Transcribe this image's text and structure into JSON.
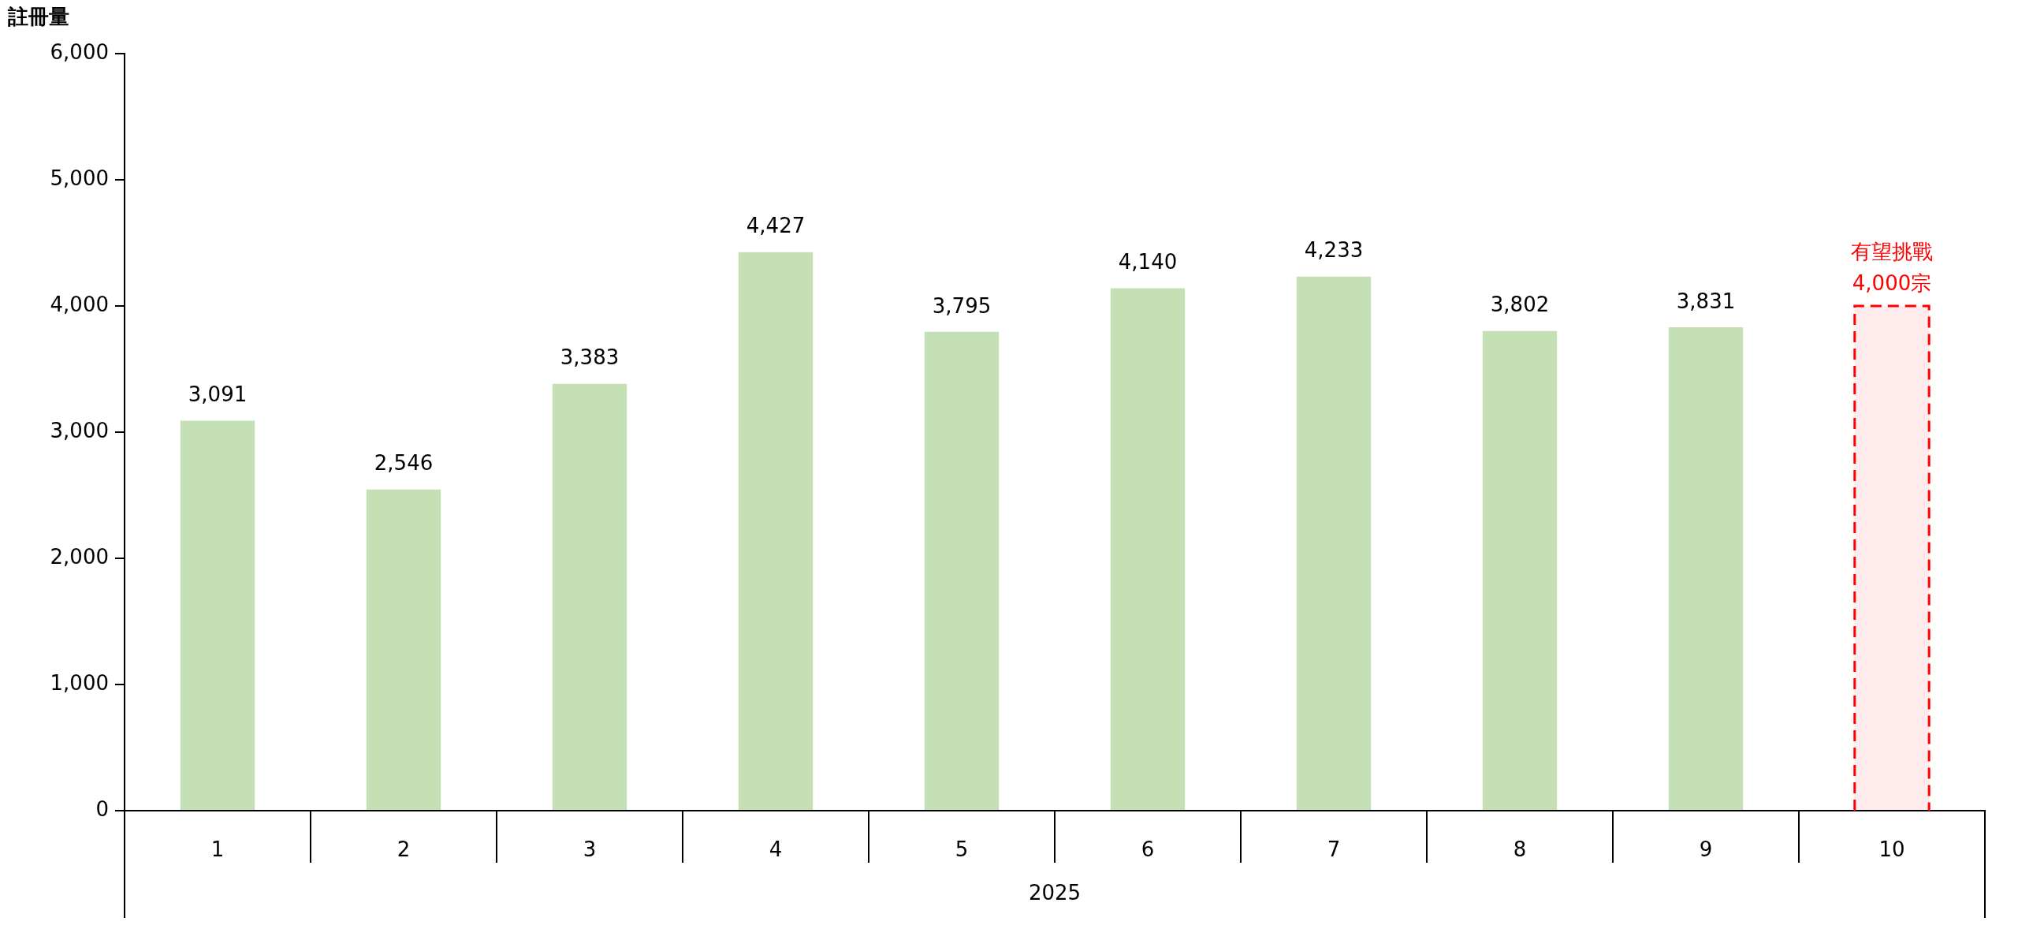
{
  "chart_data": {
    "type": "bar",
    "ylabel": "註冊量",
    "xlabel": "2025",
    "categories": [
      "1",
      "2",
      "3",
      "4",
      "5",
      "6",
      "7",
      "8",
      "9",
      "10"
    ],
    "series": [
      {
        "color": "#c5e0b4",
        "values": [
          3091,
          2546,
          3383,
          4427,
          3795,
          4140,
          4233,
          3802,
          3831,
          null
        ],
        "value_labels": [
          "3,091",
          "2,546",
          "3,383",
          "4,427",
          "3,795",
          "4,140",
          "4,233",
          "3,802",
          "3,831",
          null
        ]
      },
      {
        "type": "bar",
        "color": "#ff0000",
        "line_style": "dashed",
        "values": [
          null,
          null,
          null,
          null,
          null,
          null,
          null,
          null,
          null,
          4000
        ]
      }
    ],
    "annotations": [
      "有望挑戰\n4,000宗"
    ],
    "ylim": [
      0,
      6000
    ],
    "yticks": [
      {
        "value": 0,
        "label": "0"
      },
      {
        "value": 1000,
        "label": "1,000"
      },
      {
        "value": 2000,
        "label": "2,000"
      },
      {
        "value": 3000,
        "label": "3,000"
      },
      {
        "value": 4000,
        "label": "4,000"
      },
      {
        "value": 5000,
        "label": "5,000"
      },
      {
        "value": 6000,
        "label": "6,000"
      }
    ],
    "grid": false,
    "legend": false
  }
}
